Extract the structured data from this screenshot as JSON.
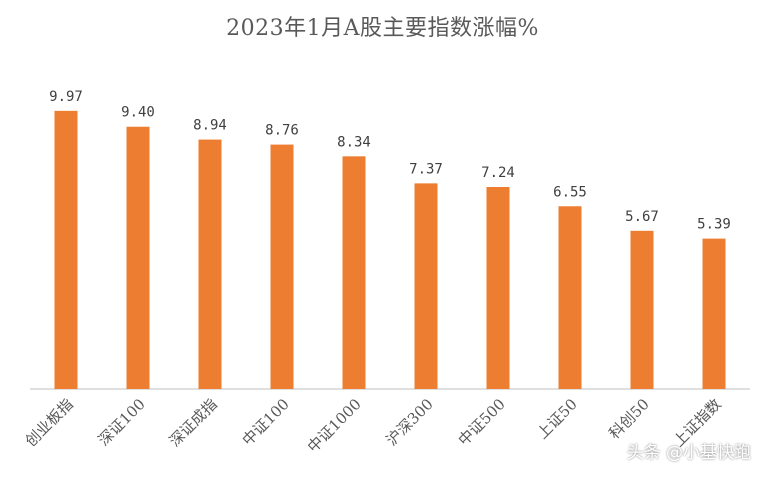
{
  "chart_data": {
    "type": "bar",
    "title": "2023年1月A股主要指数涨幅%",
    "categories": [
      "创业板指",
      "深证100",
      "深证成指",
      "中证100",
      "中证1000",
      "沪深300",
      "中证500",
      "上证50",
      "科创50",
      "上证指数"
    ],
    "values": [
      9.97,
      9.4,
      8.94,
      8.76,
      8.34,
      7.37,
      7.24,
      6.55,
      5.67,
      5.39
    ],
    "value_labels": [
      "9.97",
      "9.40",
      "8.94",
      "8.76",
      "8.34",
      "7.37",
      "7.24",
      "6.55",
      "5.67",
      "5.39"
    ],
    "ylim": [
      0,
      10
    ],
    "grid": false,
    "bar_color": "#ED7D31",
    "axis_color": "#BFBFBF"
  },
  "watermark": "头条 @小基快跑"
}
